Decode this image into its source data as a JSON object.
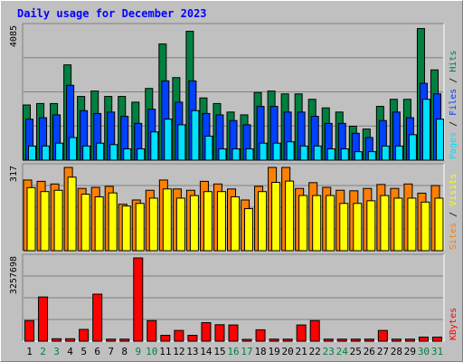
{
  "chart_data": {
    "type": "bar",
    "title": "Daily usage for December 2023",
    "categories": [
      "1",
      "2",
      "3",
      "4",
      "5",
      "6",
      "7",
      "8",
      "9",
      "10",
      "11",
      "12",
      "13",
      "14",
      "15",
      "16",
      "17",
      "18",
      "19",
      "20",
      "21",
      "22",
      "23",
      "24",
      "25",
      "26",
      "27",
      "28",
      "29",
      "30",
      "31"
    ],
    "weekend_days": [
      "2",
      "3",
      "9",
      "10",
      "16",
      "17",
      "23",
      "24",
      "30",
      "31"
    ],
    "panels": [
      {
        "id": "hits",
        "axis_max_label": "4085",
        "ylim": [
          0,
          4085
        ],
        "legend": [
          "Pages",
          "Files",
          "Hits"
        ],
        "series": [
          {
            "name": "Hits",
            "color": "#008040",
            "values": [
              1695,
              1739,
              1739,
              2927,
              1957,
              2123,
              1957,
              1957,
              1782,
              2203,
              3569,
              2535,
              3958,
              1912,
              1739,
              1478,
              1392,
              2079,
              2123,
              2036,
              2036,
              1869,
              1606,
              1478,
              1043,
              956,
              1652,
              1869,
              1869,
              4042,
              2773
            ]
          },
          {
            "name": "Files",
            "color": "#0040ff",
            "values": [
              1260,
              1304,
              1391,
              2300,
              1521,
              1434,
              1478,
              1348,
              1130,
              1565,
              2435,
              1782,
              2435,
              1434,
              1391,
              1217,
              1087,
              1652,
              1652,
              1478,
              1478,
              1348,
              1130,
              1130,
              826,
              695,
              1217,
              1478,
              1304,
              2360,
              2036
            ]
          },
          {
            "name": "Pages",
            "color": "#00e0ff",
            "values": [
              435,
              435,
              522,
              695,
              435,
              522,
              478,
              347,
              347,
              869,
              1260,
              1087,
              1521,
              739,
              347,
              347,
              347,
              522,
              522,
              565,
              435,
              435,
              347,
              347,
              261,
              261,
              435,
              435,
              782,
              1869,
              1260
            ]
          }
        ],
        "legend_colors": [
          "#00e0ff",
          "#0040ff",
          "#008040"
        ]
      },
      {
        "id": "visits",
        "axis_max_label": "317",
        "ylim": [
          0,
          317
        ],
        "legend": [
          "Sites",
          "Visits"
        ],
        "series": [
          {
            "name": "Visits",
            "color": "#ff8000",
            "values": [
              269,
              264,
              254,
              317,
              237,
              241,
              245,
              177,
              193,
              230,
              269,
              235,
              230,
              264,
              254,
              235,
              193,
              245,
              317,
              317,
              237,
              259,
              241,
              230,
              228,
              237,
              252,
              237,
              254,
              219,
              248
            ]
          },
          {
            "name": "Sites",
            "color": "#ffff00",
            "values": [
              240,
              225,
              230,
              280,
              215,
              205,
              220,
              170,
              180,
              200,
              235,
              200,
              210,
              225,
              225,
              205,
              160,
              225,
              260,
              265,
              210,
              210,
              210,
              180,
              180,
              190,
              210,
              200,
              200,
              185,
              200
            ]
          }
        ],
        "legend_colors": [
          "#ff8000",
          "#ffff00"
        ]
      },
      {
        "id": "kbytes",
        "axis_max_label": "3257698",
        "ylim": [
          0,
          3257698
        ],
        "legend": [
          "KBytes"
        ],
        "series": [
          {
            "name": "KBytes",
            "color": "#ff0000",
            "values": [
              805000,
              1730000,
              95000,
              95000,
              460000,
              1840000,
              80000,
              80000,
              3257698,
              805000,
              230000,
              420000,
              230000,
              725000,
              645000,
              635000,
              25000,
              445000,
              80000,
              80000,
              635000,
              805000,
              80000,
              80000,
              80000,
              80000,
              420000,
              80000,
              80000,
              160000,
              160000
            ]
          }
        ],
        "legend_colors": [
          "#ff0000"
        ]
      }
    ]
  }
}
